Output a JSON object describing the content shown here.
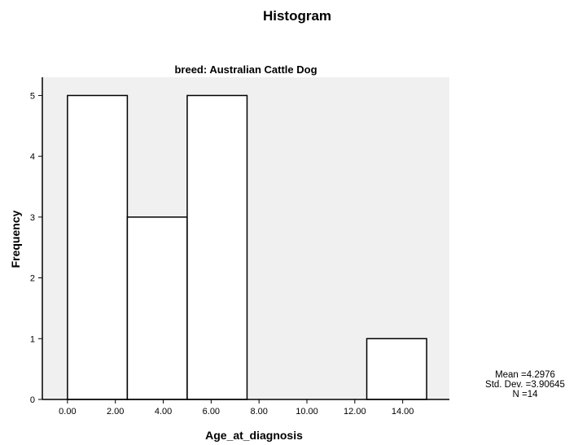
{
  "chart_data": {
    "type": "bar",
    "title": "Histogram",
    "subtitle": "breed: Australian Cattle Dog",
    "xlabel": "Age_at_diagnosis",
    "ylabel": "Frequency",
    "bins": [
      {
        "start": 0.0,
        "end": 2.5,
        "count": 5
      },
      {
        "start": 2.5,
        "end": 5.0,
        "count": 3
      },
      {
        "start": 5.0,
        "end": 7.5,
        "count": 5
      },
      {
        "start": 7.5,
        "end": 10.0,
        "count": 0
      },
      {
        "start": 10.0,
        "end": 12.5,
        "count": 0
      },
      {
        "start": 12.5,
        "end": 15.0,
        "count": 1
      }
    ],
    "xlim": [
      -1.05,
      15.95
    ],
    "ylim": [
      0,
      5.3
    ],
    "xticks": [
      0,
      2,
      4,
      6,
      8,
      10,
      12,
      14
    ],
    "xtick_labels": [
      "0.00",
      "2.00",
      "4.00",
      "6.00",
      "8.00",
      "10.00",
      "12.00",
      "14.00"
    ],
    "yticks": [
      0,
      1,
      2,
      3,
      4,
      5
    ],
    "ytick_labels": [
      "0",
      "1",
      "2",
      "3",
      "4",
      "5"
    ],
    "plot_background": "#f0f0f0",
    "bar_fill": "#ffffff",
    "bar_stroke": "#000000",
    "grid": false,
    "stats": {
      "mean": "Mean =4.2976",
      "std_dev": "Std. Dev. =3.90645",
      "n": "N =14"
    }
  }
}
